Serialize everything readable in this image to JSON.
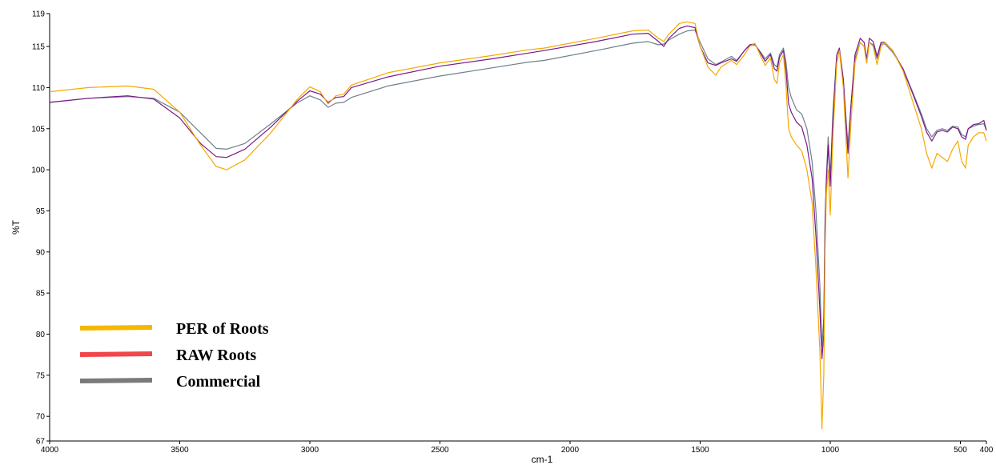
{
  "chart_data": {
    "type": "line",
    "title": "",
    "xlabel": "cm-1",
    "ylabel": "%T",
    "xlim": [
      4000,
      400
    ],
    "ylim": [
      67,
      119
    ],
    "x_reversed": true,
    "grid": false,
    "legend_position": "lower-left",
    "x_ticks": [
      4000,
      3500,
      3000,
      2500,
      2000,
      1500,
      1000,
      500,
      400
    ],
    "x_tick_labels": [
      "4000",
      "3500",
      "3000",
      "2500",
      "2000",
      "1500",
      "1000",
      "500",
      "400"
    ],
    "y_ticks": [
      67,
      70,
      75,
      80,
      85,
      90,
      95,
      100,
      105,
      110,
      115,
      119
    ],
    "y_tick_labels": [
      "67",
      "70",
      "75",
      "80",
      "85",
      "90",
      "95",
      "100",
      "105",
      "110",
      "115",
      "119"
    ],
    "series": [
      {
        "name": "PER of Roots",
        "color": "#f5a800",
        "legend_color": "#f5b800",
        "points": [
          [
            4000,
            109.5
          ],
          [
            3850,
            110
          ],
          [
            3700,
            110.2
          ],
          [
            3600,
            109.8
          ],
          [
            3500,
            107
          ],
          [
            3420,
            103
          ],
          [
            3360,
            100.4
          ],
          [
            3320,
            100
          ],
          [
            3250,
            101.2
          ],
          [
            3150,
            104.5
          ],
          [
            3050,
            108.5
          ],
          [
            3000,
            110.1
          ],
          [
            2960,
            109.5
          ],
          [
            2930,
            108
          ],
          [
            2900,
            109
          ],
          [
            2870,
            109.2
          ],
          [
            2840,
            110.3
          ],
          [
            2700,
            111.8
          ],
          [
            2500,
            113
          ],
          [
            2300,
            113.9
          ],
          [
            2160,
            114.6
          ],
          [
            2100,
            114.8
          ],
          [
            1900,
            116
          ],
          [
            1760,
            116.9
          ],
          [
            1700,
            117
          ],
          [
            1660,
            116
          ],
          [
            1640,
            115.6
          ],
          [
            1620,
            116.5
          ],
          [
            1580,
            117.8
          ],
          [
            1550,
            118
          ],
          [
            1520,
            117.8
          ],
          [
            1500,
            115
          ],
          [
            1470,
            112.5
          ],
          [
            1440,
            111.5
          ],
          [
            1420,
            112.5
          ],
          [
            1380,
            113.3
          ],
          [
            1360,
            112.8
          ],
          [
            1330,
            114
          ],
          [
            1310,
            115
          ],
          [
            1290,
            115.4
          ],
          [
            1270,
            114
          ],
          [
            1250,
            112.7
          ],
          [
            1230,
            113.6
          ],
          [
            1215,
            111
          ],
          [
            1205,
            110.5
          ],
          [
            1195,
            113
          ],
          [
            1180,
            114
          ],
          [
            1170,
            110
          ],
          [
            1160,
            105
          ],
          [
            1150,
            104
          ],
          [
            1130,
            103
          ],
          [
            1110,
            102.3
          ],
          [
            1090,
            100
          ],
          [
            1070,
            96
          ],
          [
            1055,
            88
          ],
          [
            1040,
            78
          ],
          [
            1032,
            68.5
          ],
          [
            1025,
            75
          ],
          [
            1020,
            90
          ],
          [
            1015,
            97
          ],
          [
            1008,
            100
          ],
          [
            1000,
            94.5
          ],
          [
            990,
            104
          ],
          [
            975,
            113
          ],
          [
            965,
            114.5
          ],
          [
            950,
            110
          ],
          [
            940,
            104
          ],
          [
            932,
            99
          ],
          [
            920,
            106
          ],
          [
            905,
            113
          ],
          [
            885,
            115.5
          ],
          [
            870,
            115
          ],
          [
            860,
            113
          ],
          [
            850,
            115.5
          ],
          [
            835,
            115
          ],
          [
            820,
            112.8
          ],
          [
            805,
            115
          ],
          [
            790,
            115.5
          ],
          [
            760,
            114.5
          ],
          [
            720,
            112
          ],
          [
            680,
            108
          ],
          [
            650,
            105
          ],
          [
            630,
            102
          ],
          [
            610,
            100.2
          ],
          [
            590,
            102
          ],
          [
            570,
            101.5
          ],
          [
            550,
            101
          ],
          [
            530,
            102.5
          ],
          [
            510,
            103.5
          ],
          [
            495,
            101
          ],
          [
            480,
            100.2
          ],
          [
            470,
            103
          ],
          [
            450,
            104
          ],
          [
            430,
            104.5
          ],
          [
            410,
            104.5
          ],
          [
            400,
            103.5
          ]
        ]
      },
      {
        "name": "RAW Roots",
        "color": "#7a1a8a",
        "legend_color": "#f0474a",
        "points": [
          [
            4000,
            108.2
          ],
          [
            3850,
            108.7
          ],
          [
            3700,
            109
          ],
          [
            3600,
            108.6
          ],
          [
            3500,
            106.3
          ],
          [
            3420,
            103.2
          ],
          [
            3360,
            101.6
          ],
          [
            3320,
            101.5
          ],
          [
            3250,
            102.5
          ],
          [
            3150,
            105.2
          ],
          [
            3050,
            108.3
          ],
          [
            3000,
            109.6
          ],
          [
            2960,
            109.2
          ],
          [
            2930,
            108.2
          ],
          [
            2900,
            108.8
          ],
          [
            2870,
            108.9
          ],
          [
            2840,
            110
          ],
          [
            2700,
            111.3
          ],
          [
            2500,
            112.6
          ],
          [
            2300,
            113.5
          ],
          [
            2160,
            114.2
          ],
          [
            2100,
            114.5
          ],
          [
            1900,
            115.6
          ],
          [
            1760,
            116.5
          ],
          [
            1700,
            116.6
          ],
          [
            1660,
            115.6
          ],
          [
            1640,
            115
          ],
          [
            1620,
            116
          ],
          [
            1580,
            117.2
          ],
          [
            1550,
            117.5
          ],
          [
            1520,
            117.3
          ],
          [
            1500,
            115
          ],
          [
            1470,
            113
          ],
          [
            1440,
            112.7
          ],
          [
            1420,
            113
          ],
          [
            1380,
            113.5
          ],
          [
            1360,
            113.2
          ],
          [
            1330,
            114.5
          ],
          [
            1310,
            115.2
          ],
          [
            1290,
            115.3
          ],
          [
            1270,
            114.3
          ],
          [
            1250,
            113.2
          ],
          [
            1230,
            114
          ],
          [
            1215,
            112.3
          ],
          [
            1205,
            112
          ],
          [
            1195,
            113.7
          ],
          [
            1180,
            114.5
          ],
          [
            1170,
            112
          ],
          [
            1160,
            108
          ],
          [
            1150,
            107
          ],
          [
            1130,
            105.8
          ],
          [
            1110,
            105.2
          ],
          [
            1090,
            103
          ],
          [
            1070,
            99
          ],
          [
            1055,
            92
          ],
          [
            1040,
            83
          ],
          [
            1032,
            77
          ],
          [
            1025,
            80
          ],
          [
            1020,
            93
          ],
          [
            1015,
            98.5
          ],
          [
            1008,
            103
          ],
          [
            1000,
            98
          ],
          [
            990,
            106
          ],
          [
            975,
            114
          ],
          [
            965,
            114.8
          ],
          [
            950,
            111
          ],
          [
            940,
            106
          ],
          [
            932,
            102
          ],
          [
            920,
            108
          ],
          [
            905,
            114
          ],
          [
            885,
            116
          ],
          [
            870,
            115.5
          ],
          [
            860,
            113.5
          ],
          [
            850,
            116
          ],
          [
            835,
            115.6
          ],
          [
            820,
            113.8
          ],
          [
            805,
            115.5
          ],
          [
            790,
            115.5
          ],
          [
            760,
            114.5
          ],
          [
            720,
            112.2
          ],
          [
            680,
            109
          ],
          [
            650,
            106.5
          ],
          [
            630,
            104.6
          ],
          [
            610,
            103.5
          ],
          [
            590,
            104.6
          ],
          [
            570,
            104.8
          ],
          [
            550,
            104.6
          ],
          [
            530,
            105.2
          ],
          [
            510,
            105
          ],
          [
            495,
            104
          ],
          [
            480,
            103.7
          ],
          [
            470,
            105
          ],
          [
            450,
            105.5
          ],
          [
            430,
            105.6
          ],
          [
            410,
            106
          ],
          [
            400,
            104.8
          ]
        ]
      },
      {
        "name": "Commercial",
        "color": "#6e7f8c",
        "legend_color": "#7a7a7a",
        "points": [
          [
            4000,
            108.2
          ],
          [
            3850,
            108.7
          ],
          [
            3700,
            108.9
          ],
          [
            3600,
            108.7
          ],
          [
            3500,
            107
          ],
          [
            3420,
            104.5
          ],
          [
            3360,
            102.6
          ],
          [
            3320,
            102.5
          ],
          [
            3250,
            103.2
          ],
          [
            3150,
            105.6
          ],
          [
            3050,
            108.1
          ],
          [
            3000,
            109
          ],
          [
            2960,
            108.5
          ],
          [
            2930,
            107.6
          ],
          [
            2900,
            108.1
          ],
          [
            2870,
            108.2
          ],
          [
            2840,
            108.8
          ],
          [
            2700,
            110.2
          ],
          [
            2500,
            111.4
          ],
          [
            2300,
            112.4
          ],
          [
            2160,
            113.1
          ],
          [
            2100,
            113.3
          ],
          [
            1900,
            114.5
          ],
          [
            1760,
            115.4
          ],
          [
            1700,
            115.6
          ],
          [
            1660,
            115.2
          ],
          [
            1640,
            115.3
          ],
          [
            1620,
            115.8
          ],
          [
            1580,
            116.5
          ],
          [
            1550,
            116.9
          ],
          [
            1520,
            117
          ],
          [
            1500,
            115.5
          ],
          [
            1470,
            113.5
          ],
          [
            1440,
            112.8
          ],
          [
            1420,
            113.1
          ],
          [
            1380,
            113.8
          ],
          [
            1360,
            113.3
          ],
          [
            1330,
            114.5
          ],
          [
            1310,
            115.1
          ],
          [
            1290,
            115.2
          ],
          [
            1270,
            114.4
          ],
          [
            1250,
            113.5
          ],
          [
            1230,
            114.2
          ],
          [
            1215,
            112.8
          ],
          [
            1205,
            112.5
          ],
          [
            1195,
            114
          ],
          [
            1180,
            114.8
          ],
          [
            1170,
            113
          ],
          [
            1160,
            110
          ],
          [
            1150,
            108.8
          ],
          [
            1130,
            107.3
          ],
          [
            1110,
            106.8
          ],
          [
            1090,
            105
          ],
          [
            1070,
            101
          ],
          [
            1055,
            95
          ],
          [
            1040,
            86
          ],
          [
            1032,
            78.5
          ],
          [
            1025,
            82
          ],
          [
            1020,
            94
          ],
          [
            1015,
            99
          ],
          [
            1008,
            104
          ],
          [
            1000,
            99
          ],
          [
            990,
            107
          ],
          [
            975,
            114
          ],
          [
            965,
            114.5
          ],
          [
            950,
            111
          ],
          [
            940,
            106.5
          ],
          [
            932,
            103
          ],
          [
            920,
            108
          ],
          [
            905,
            113.5
          ],
          [
            885,
            115.5
          ],
          [
            870,
            115
          ],
          [
            860,
            113
          ],
          [
            850,
            115.5
          ],
          [
            835,
            115.2
          ],
          [
            820,
            113.5
          ],
          [
            805,
            115.3
          ],
          [
            790,
            115.3
          ],
          [
            760,
            114.3
          ],
          [
            720,
            112.3
          ],
          [
            680,
            109.2
          ],
          [
            650,
            106.8
          ],
          [
            630,
            105
          ],
          [
            610,
            104
          ],
          [
            590,
            104.8
          ],
          [
            570,
            105
          ],
          [
            550,
            104.8
          ],
          [
            530,
            105.3
          ],
          [
            510,
            105.2
          ],
          [
            495,
            104.3
          ],
          [
            480,
            104
          ],
          [
            470,
            105
          ],
          [
            450,
            105.3
          ],
          [
            430,
            105.5
          ],
          [
            410,
            105.6
          ],
          [
            400,
            104.8
          ]
        ]
      }
    ]
  }
}
